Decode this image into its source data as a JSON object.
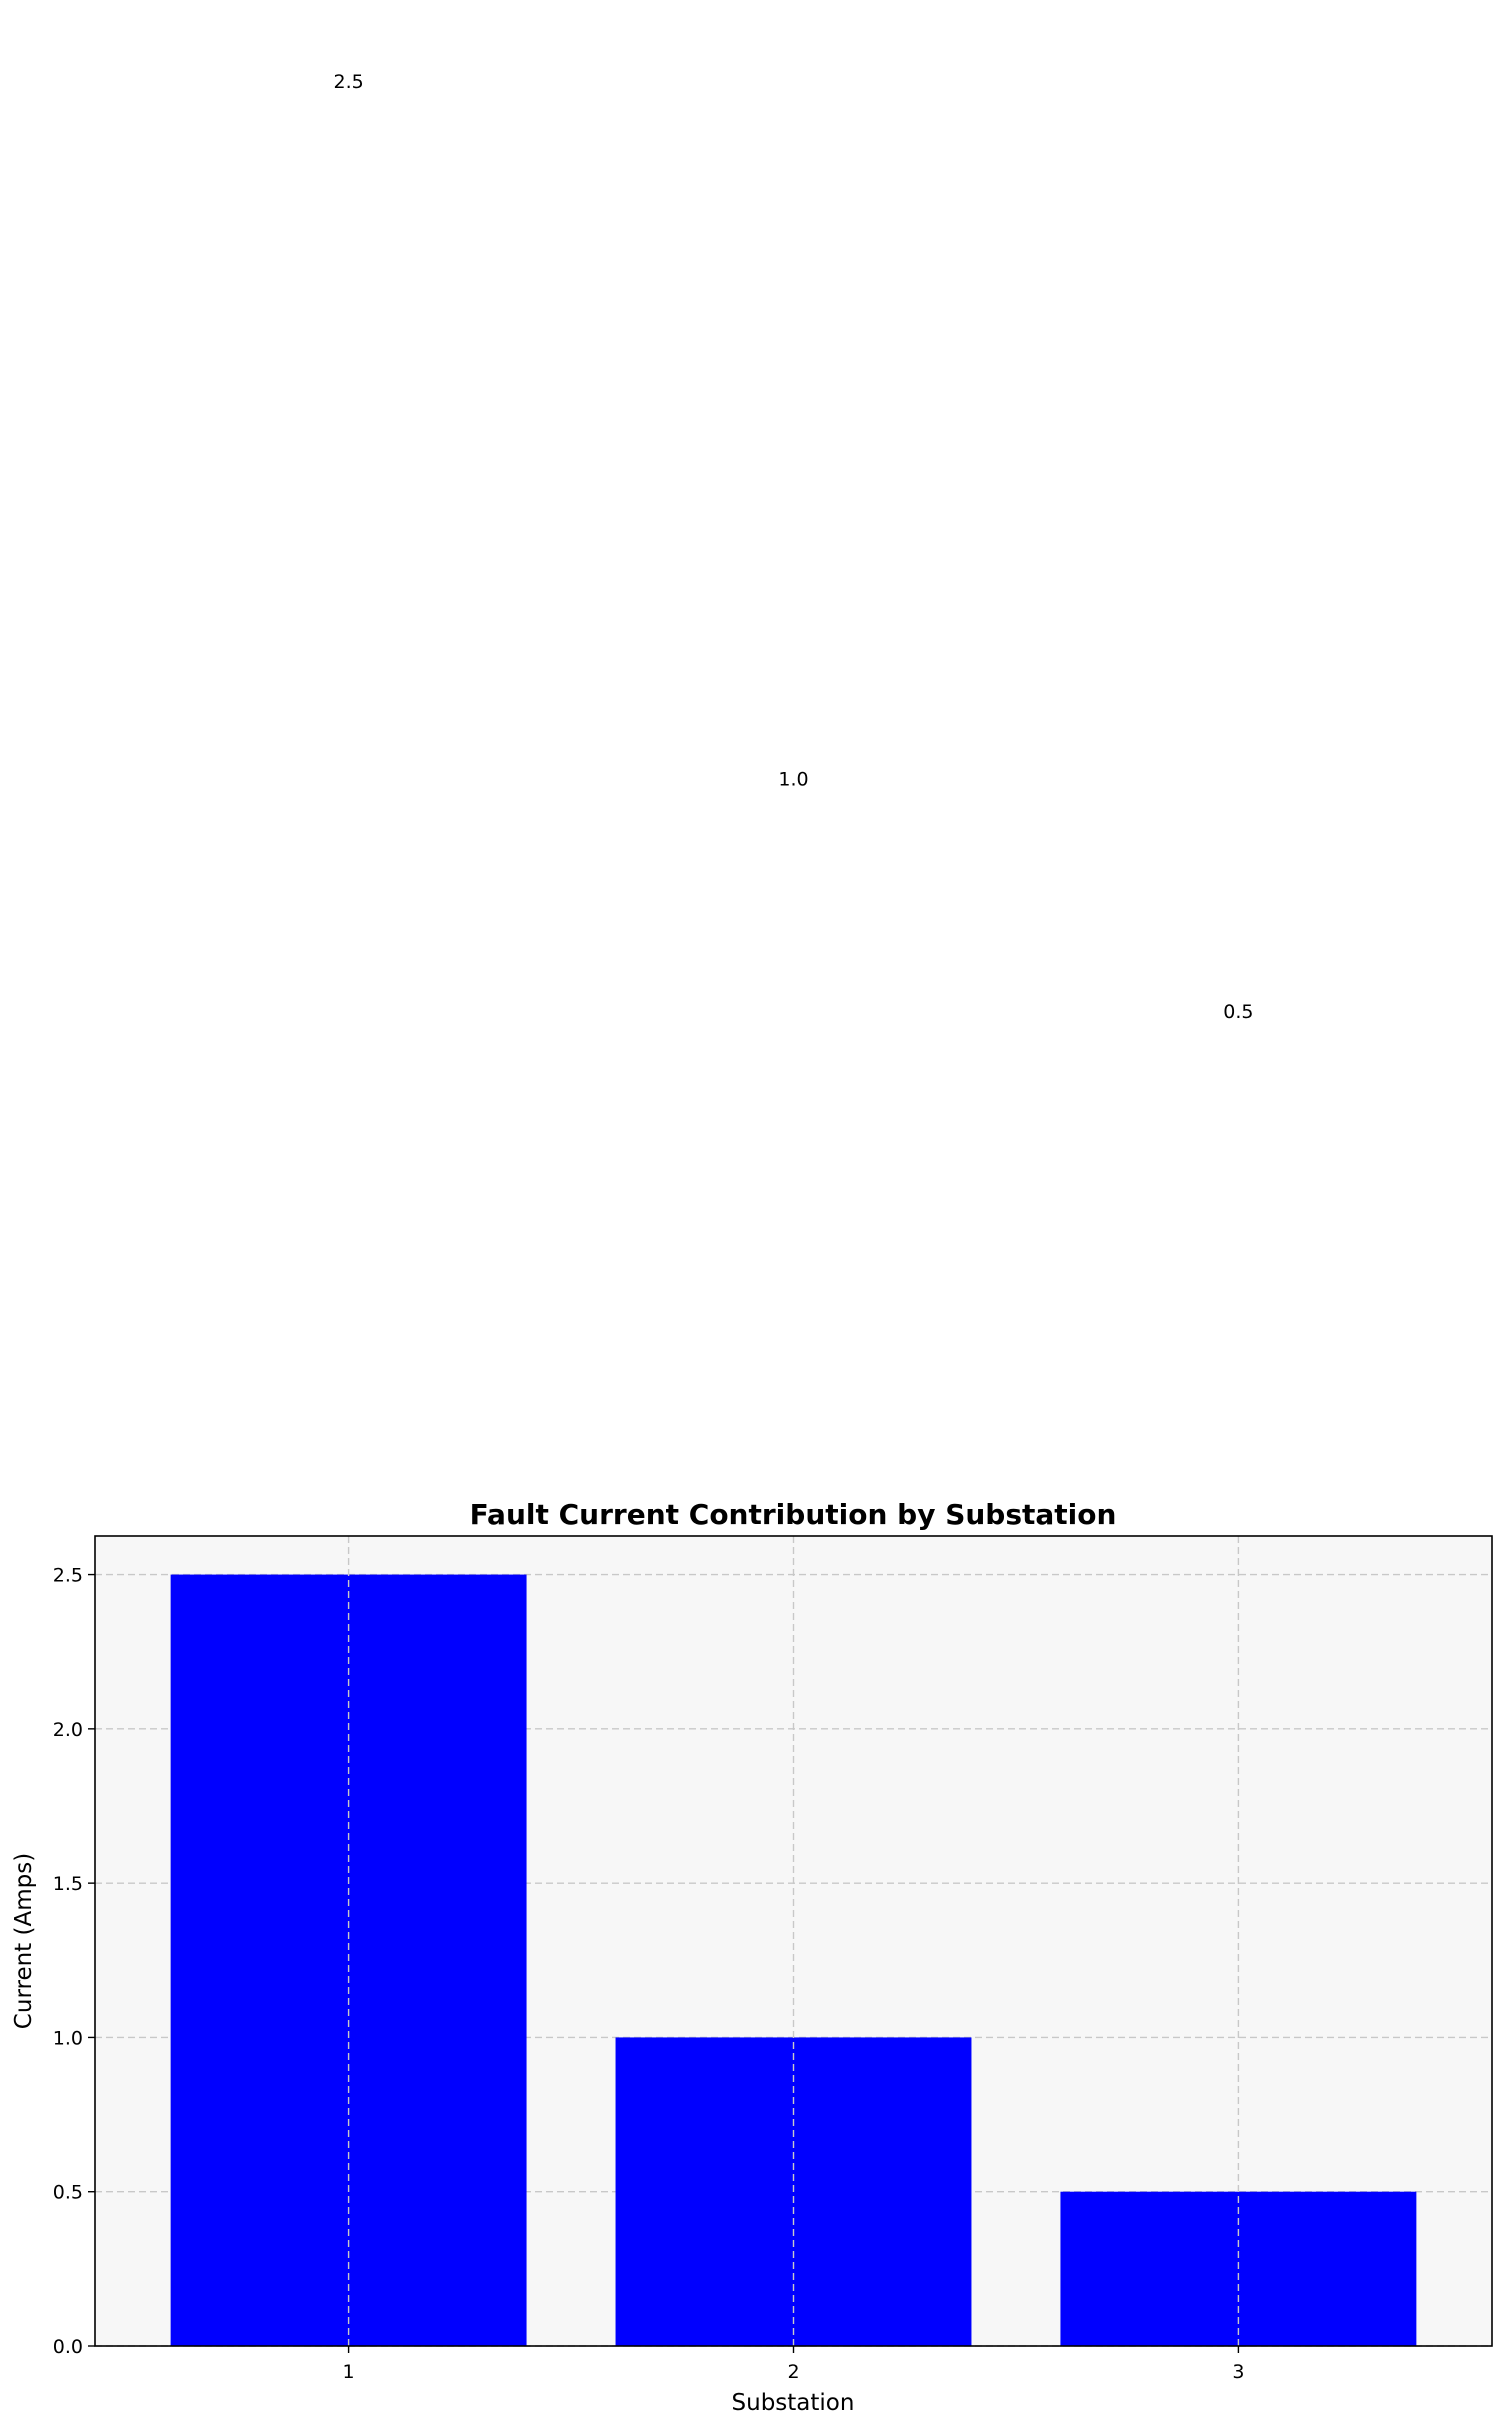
{
  "chart_data": {
    "type": "bar",
    "title": "Fault Current Contribution by Substation",
    "xlabel": "Substation",
    "ylabel": "Current (Amps)",
    "categories": [
      "1",
      "2",
      "3"
    ],
    "values": [
      2.5,
      1.0,
      0.5
    ],
    "value_labels": [
      "2.5",
      "1.0",
      "0.5"
    ],
    "ylim": [
      0,
      2.625
    ],
    "yticks": [
      0.0,
      0.5,
      1.0,
      1.5,
      2.0,
      2.5
    ],
    "ytick_labels": [
      "0.0",
      "0.5",
      "1.0",
      "1.5",
      "2.0",
      "2.5"
    ],
    "grid": true,
    "legend": "none",
    "colors": {
      "bar": "#0000ff",
      "plot_background": "#f7f7f7",
      "grid": "#c8c8c8"
    }
  }
}
